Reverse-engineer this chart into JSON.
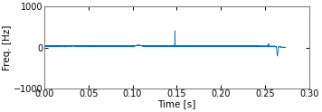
{
  "title": "",
  "xlabel": "Time [s]",
  "ylabel": "Freq. [Hz]",
  "xlim": [
    0,
    0.3
  ],
  "ylim": [
    -1000,
    1000
  ],
  "yticks": [
    -1000,
    0,
    1000
  ],
  "xticks": [
    0,
    0.05,
    0.1,
    0.15,
    0.2,
    0.25,
    0.3
  ],
  "line_color": "#0070C0",
  "line_width": 0.6,
  "n_points": 8000,
  "background_color": "#ffffff",
  "figsize": [
    3.56,
    1.24
  ],
  "dpi": 100
}
